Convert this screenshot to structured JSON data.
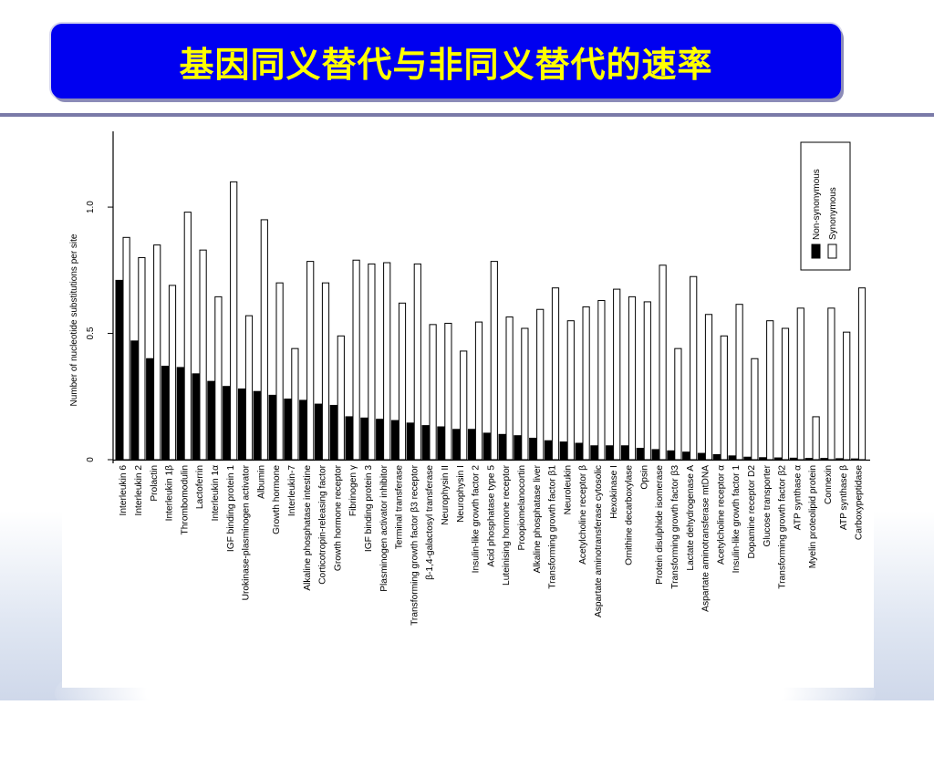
{
  "slide": {
    "title": "基因同义替代与非同义替代的速率",
    "colors": {
      "banner": "#0000f0",
      "title_text": "#ffff00",
      "rule": "#7a7aa8"
    }
  },
  "chart_data": {
    "type": "bar",
    "title": "",
    "xlabel": "",
    "ylabel": "Number of nucleotide substitutions per site",
    "ylim": [
      0,
      1.3
    ],
    "yticks": [
      {
        "value": 0,
        "label": "0"
      },
      {
        "value": 0.5,
        "label": "0.5"
      },
      {
        "value": 1.0,
        "label": "1.0"
      }
    ],
    "grid": false,
    "legend_position": "top-right",
    "categories": [
      "Interleukin 6",
      "Interleukin 2",
      "Prolactin",
      "Interleukin 1β",
      "Thrombomodulin",
      "Lactoferrin",
      "Interleukin 1α",
      "IGF binding protein 1",
      "Urokinase-plasminogen activator",
      "Albumin",
      "Growth hormone",
      "Interleukin-7",
      "Alkaline phosphatase intestine",
      "Corticotropin-releasing factor",
      "Growth hormone receptor",
      "Fibrinogen γ",
      "IGF binding protein 3",
      "Plasminogen activator inhibitor",
      "Terminal transferase",
      "Transforming growth factor β3 receptor",
      "β-1,4-galactosyl transferase",
      "Neurophysin II",
      "Neurophysin I",
      "Insulin-like growth factor 2",
      "Acid phosphatase type 5",
      "Luteinising hormone receptor",
      "Proopiomelanocortin",
      "Alkaline phosphatase liver",
      "Transforming growth factor β1",
      "Neuroleukin",
      "Acetylcholine receptor β",
      "Aspartate aminotransferase cytosolic",
      "Hexokinase I",
      "Ornithine decarboxylase",
      "Opsin",
      "Protein disulphide isomerase",
      "Transforming growth factor β3",
      "Lactate dehydrogenase A",
      "Aspartate aminotransferase mtDNA",
      "Acetylcholine receptor α",
      "Insulin-like growth factor 1",
      "Dopamine receptor D2",
      "Glucose transporter",
      "Transforming growth factor β2",
      "ATP synthase α",
      "Myelin proteolipid protein",
      "Connexin",
      "ATP synthase β",
      "Carboxypeptidase"
    ],
    "series": [
      {
        "name": "Non-synonymous",
        "color": "#000000",
        "values": [
          0.71,
          0.47,
          0.4,
          0.37,
          0.365,
          0.34,
          0.31,
          0.29,
          0.28,
          0.27,
          0.255,
          0.24,
          0.235,
          0.22,
          0.215,
          0.17,
          0.165,
          0.16,
          0.155,
          0.145,
          0.135,
          0.13,
          0.12,
          0.12,
          0.105,
          0.1,
          0.095,
          0.085,
          0.075,
          0.07,
          0.065,
          0.055,
          0.055,
          0.055,
          0.045,
          0.04,
          0.035,
          0.03,
          0.025,
          0.02,
          0.015,
          0.01,
          0.008,
          0.007,
          0.006,
          0.005,
          0.005,
          0.004,
          0.003
        ]
      },
      {
        "name": "Synonymous",
        "color": "#ffffff",
        "values": [
          0.88,
          0.8,
          0.85,
          0.69,
          0.98,
          0.83,
          0.645,
          1.1,
          0.57,
          0.95,
          0.7,
          0.44,
          0.785,
          0.7,
          0.49,
          0.79,
          0.775,
          0.78,
          0.62,
          0.775,
          0.535,
          0.54,
          0.43,
          0.545,
          0.785,
          0.565,
          0.52,
          0.595,
          0.68,
          0.55,
          0.605,
          0.63,
          0.675,
          0.645,
          0.625,
          0.77,
          0.44,
          0.725,
          0.575,
          0.49,
          0.615,
          0.4,
          0.55,
          0.52,
          0.6,
          0.17,
          0.6,
          0.505,
          0.68
        ]
      }
    ]
  }
}
